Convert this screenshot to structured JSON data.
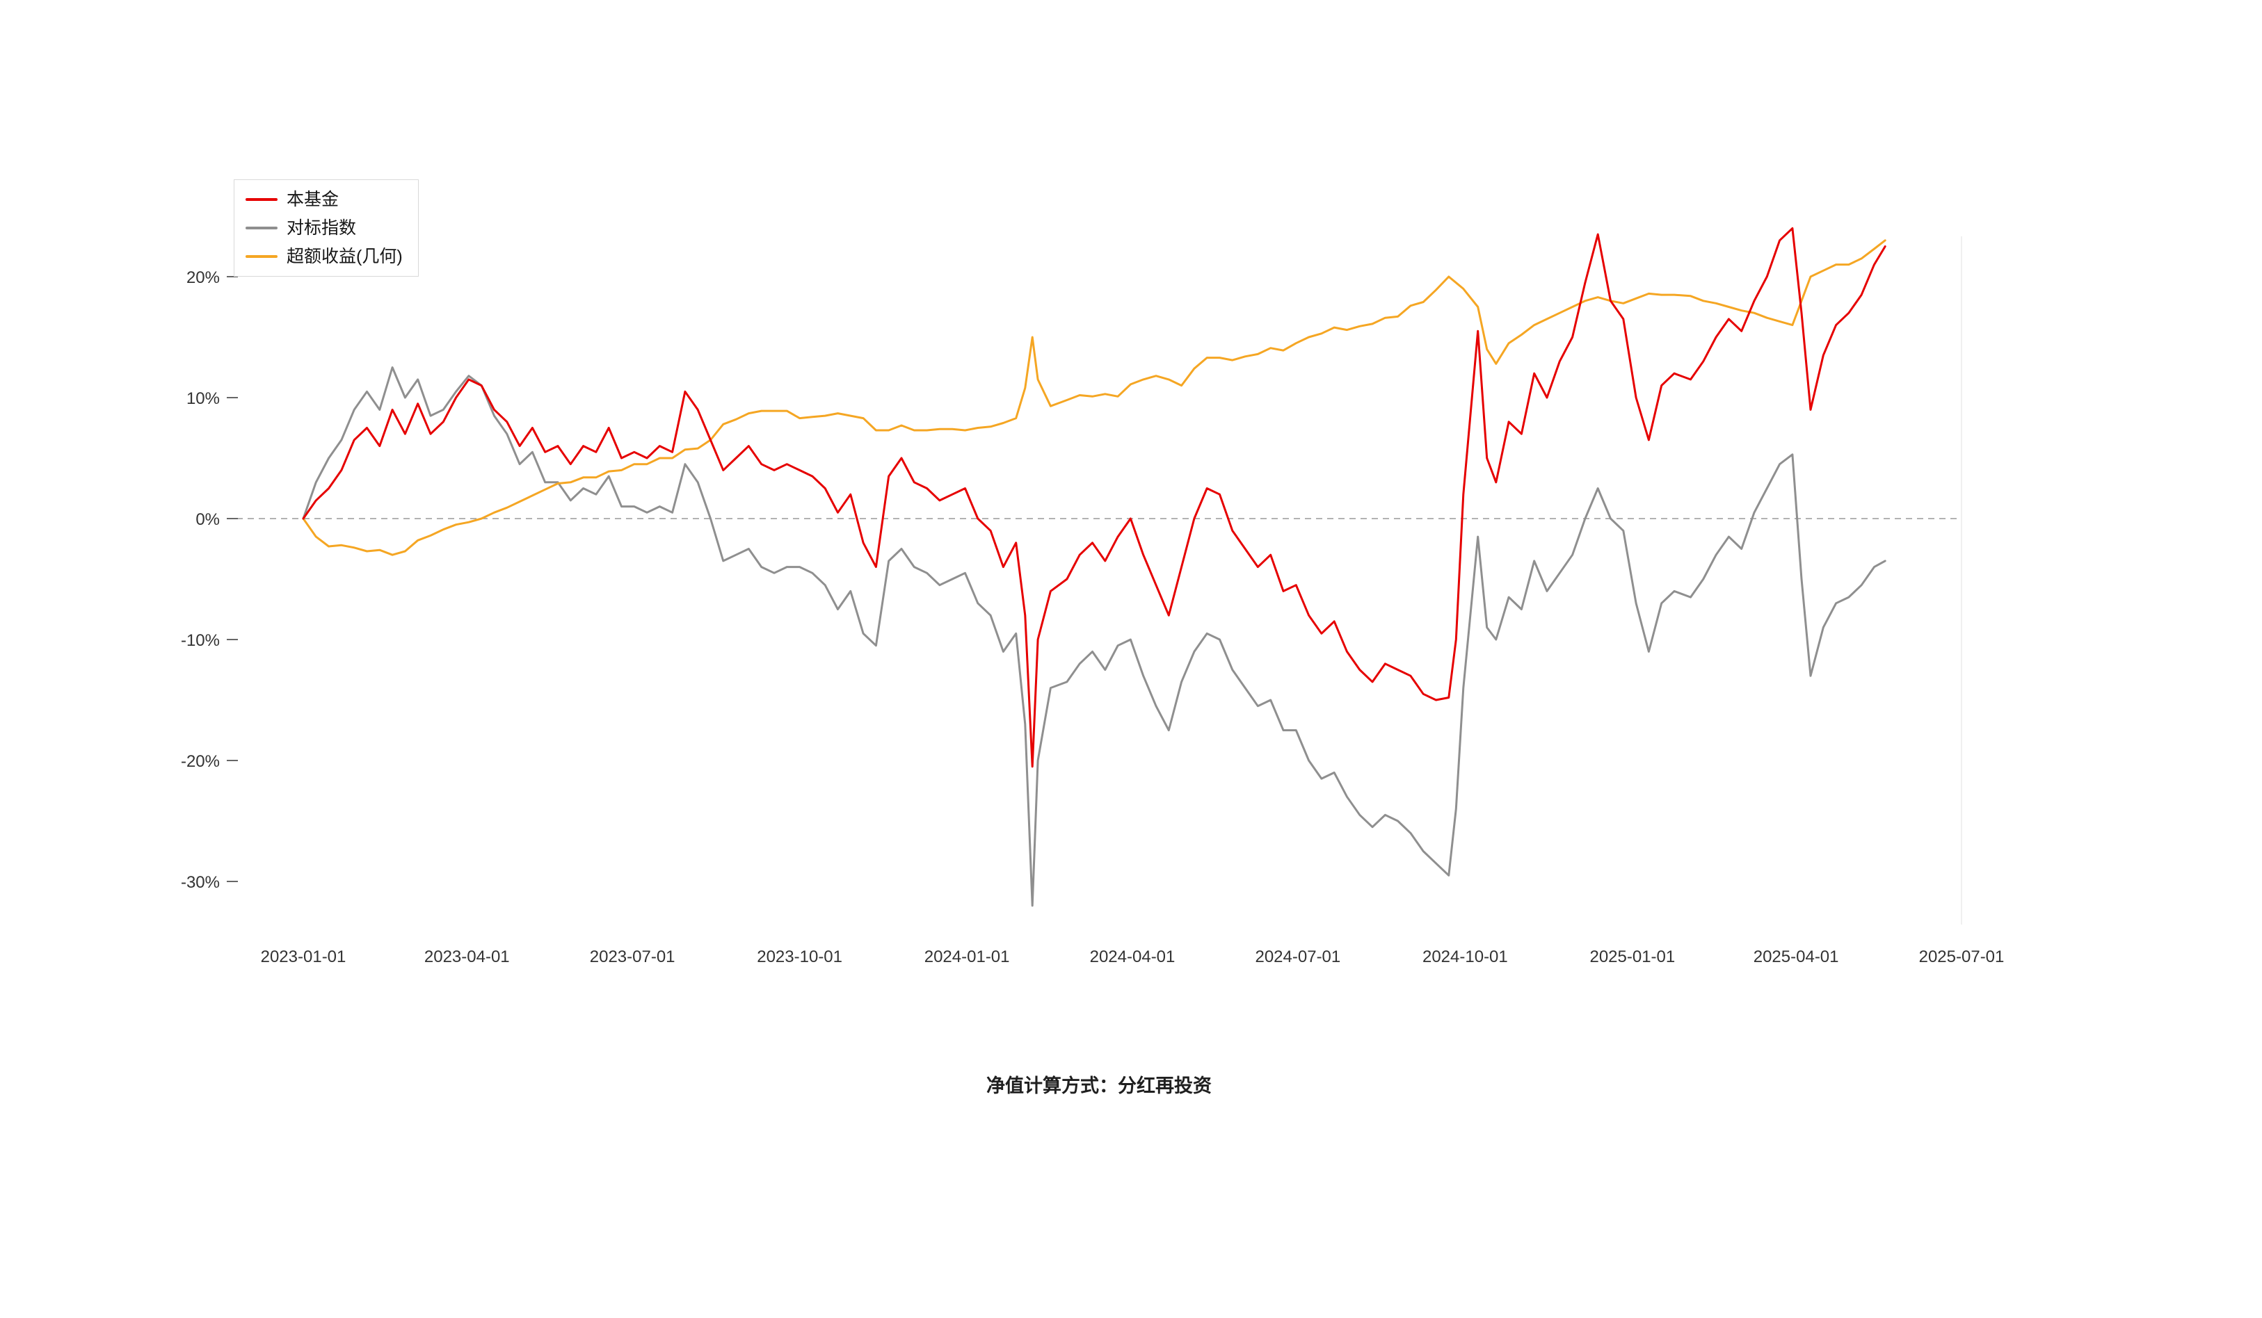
{
  "caption": {
    "text": "净值计算方式：分红再投资"
  },
  "colors": {
    "fund": "#e60000",
    "benchmark": "#8f8f8f",
    "excess": "#f5a623",
    "zero_line": "#999999",
    "axis_text": "#333333",
    "background": "#ffffff"
  },
  "chart_data": {
    "type": "line",
    "title": "",
    "xlabel": "",
    "ylabel": "",
    "legend_position": "top-left",
    "grid": false,
    "zero_line_dashed": true,
    "ylim": [
      -33,
      26
    ],
    "x_range": [
      "2023-01-01",
      "2025-07-01"
    ],
    "y_ticks": [
      {
        "label": "20%",
        "value": 20
      },
      {
        "label": "10%",
        "value": 10
      },
      {
        "label": "0%",
        "value": 0
      },
      {
        "label": "-10%",
        "value": -10
      },
      {
        "label": "-20%",
        "value": -20
      },
      {
        "label": "-30%",
        "value": -30
      }
    ],
    "x_ticks": [
      "2023-01-01",
      "2023-04-01",
      "2023-07-01",
      "2023-10-01",
      "2024-01-01",
      "2024-04-01",
      "2024-07-01",
      "2024-10-01",
      "2025-01-01",
      "2025-04-01",
      "2025-07-01"
    ],
    "x": [
      "2023-01-01",
      "2023-01-08",
      "2023-01-15",
      "2023-01-22",
      "2023-01-29",
      "2023-02-05",
      "2023-02-12",
      "2023-02-19",
      "2023-02-26",
      "2023-03-05",
      "2023-03-12",
      "2023-03-19",
      "2023-03-26",
      "2023-04-02",
      "2023-04-09",
      "2023-04-16",
      "2023-04-23",
      "2023-04-30",
      "2023-05-07",
      "2023-05-14",
      "2023-05-21",
      "2023-05-28",
      "2023-06-04",
      "2023-06-11",
      "2023-06-18",
      "2023-06-25",
      "2023-07-02",
      "2023-07-09",
      "2023-07-16",
      "2023-07-23",
      "2023-07-30",
      "2023-08-06",
      "2023-08-13",
      "2023-08-20",
      "2023-08-27",
      "2023-09-03",
      "2023-09-10",
      "2023-09-17",
      "2023-09-24",
      "2023-10-01",
      "2023-10-08",
      "2023-10-15",
      "2023-10-22",
      "2023-10-29",
      "2023-11-05",
      "2023-11-12",
      "2023-11-19",
      "2023-11-26",
      "2023-12-03",
      "2023-12-10",
      "2023-12-17",
      "2023-12-24",
      "2023-12-31",
      "2024-01-07",
      "2024-01-14",
      "2024-01-21",
      "2024-01-28",
      "2024-02-02",
      "2024-02-06",
      "2024-02-09",
      "2024-02-16",
      "2024-02-25",
      "2024-03-03",
      "2024-03-10",
      "2024-03-17",
      "2024-03-24",
      "2024-03-31",
      "2024-04-07",
      "2024-04-14",
      "2024-04-21",
      "2024-04-28",
      "2024-05-05",
      "2024-05-12",
      "2024-05-19",
      "2024-05-26",
      "2024-06-02",
      "2024-06-09",
      "2024-06-16",
      "2024-06-23",
      "2024-06-30",
      "2024-07-07",
      "2024-07-14",
      "2024-07-21",
      "2024-07-28",
      "2024-08-04",
      "2024-08-11",
      "2024-08-18",
      "2024-08-25",
      "2024-09-01",
      "2024-09-08",
      "2024-09-15",
      "2024-09-22",
      "2024-09-26",
      "2024-09-30",
      "2024-10-08",
      "2024-10-13",
      "2024-10-18",
      "2024-10-25",
      "2024-11-01",
      "2024-11-08",
      "2024-11-15",
      "2024-11-22",
      "2024-11-29",
      "2024-12-06",
      "2024-12-13",
      "2024-12-20",
      "2024-12-27",
      "2025-01-03",
      "2025-01-10",
      "2025-01-17",
      "2025-01-24",
      "2025-02-02",
      "2025-02-09",
      "2025-02-16",
      "2025-02-23",
      "2025-03-02",
      "2025-03-09",
      "2025-03-16",
      "2025-03-23",
      "2025-03-30",
      "2025-04-04",
      "2025-04-09",
      "2025-04-16",
      "2025-04-23",
      "2025-04-30",
      "2025-05-07",
      "2025-05-14",
      "2025-05-20"
    ],
    "series": [
      {
        "id": "fund",
        "name": "本基金",
        "color": "#e60000",
        "values": [
          0,
          1.5,
          2.5,
          4,
          6.5,
          7.5,
          6,
          9,
          7,
          9.5,
          7,
          8,
          10,
          11.5,
          11,
          9,
          8,
          6,
          7.5,
          5.5,
          6,
          4.5,
          6,
          5.5,
          7.5,
          5,
          5.5,
          5,
          6,
          5.5,
          10.5,
          9,
          6.5,
          4,
          5,
          6,
          4.5,
          4,
          4.5,
          4,
          3.5,
          2.5,
          0.5,
          2,
          -2,
          -4,
          3.5,
          5,
          3,
          2.5,
          1.5,
          2,
          2.5,
          0,
          -1,
          -4,
          -2,
          -8,
          -20.5,
          -10,
          -6,
          -5,
          -3,
          -2,
          -3.5,
          -1.5,
          0,
          -3,
          -5.5,
          -8,
          -4,
          0,
          2.5,
          2,
          -1,
          -2.5,
          -4,
          -3,
          -6,
          -5.5,
          -8,
          -9.5,
          -8.5,
          -11,
          -12.5,
          -13.5,
          -12,
          -12.5,
          -13,
          -14.5,
          -15,
          -14.8,
          -10,
          2,
          15.5,
          5,
          3,
          8,
          7,
          12,
          10,
          13,
          15,
          19.5,
          23.5,
          18,
          16.5,
          10,
          6.5,
          11,
          12,
          11.5,
          13,
          15,
          16.5,
          15.5,
          18,
          20,
          23,
          24,
          17,
          9,
          13.5,
          16,
          17,
          18.5,
          21,
          22.5
        ]
      },
      {
        "id": "benchmark",
        "name": "对标指数",
        "color": "#8f8f8f",
        "values": [
          0,
          3,
          5,
          6.5,
          9,
          10.5,
          9,
          12.5,
          10,
          11.5,
          8.5,
          9,
          10.5,
          11.8,
          11,
          8.5,
          7,
          4.5,
          5.5,
          3,
          3,
          1.5,
          2.5,
          2,
          3.5,
          1,
          1,
          0.5,
          1,
          0.5,
          4.5,
          3,
          0,
          -3.5,
          -3,
          -2.5,
          -4,
          -4.5,
          -4,
          -4,
          -4.5,
          -5.5,
          -7.5,
          -6,
          -9.5,
          -10.5,
          -3.5,
          -2.5,
          -4,
          -4.5,
          -5.5,
          -5,
          -4.5,
          -7,
          -8,
          -11,
          -9.5,
          -17,
          -32,
          -20,
          -14,
          -13.5,
          -12,
          -11,
          -12.5,
          -10.5,
          -10,
          -13,
          -15.5,
          -17.5,
          -13.5,
          -11,
          -9.5,
          -10,
          -12.5,
          -14,
          -15.5,
          -15,
          -17.5,
          -17.5,
          -20,
          -21.5,
          -21,
          -23,
          -24.5,
          -25.5,
          -24.5,
          -25,
          -26,
          -27.5,
          -28.5,
          -29.5,
          -24,
          -14,
          -1.5,
          -9,
          -10,
          -6.5,
          -7.5,
          -3.5,
          -6,
          -4.5,
          -3,
          0,
          2.5,
          0,
          -1,
          -7,
          -11,
          -7,
          -6,
          -6.5,
          -5,
          -3,
          -1.5,
          -2.5,
          0.5,
          2.5,
          4.5,
          5.3,
          -5,
          -13,
          -9,
          -7,
          -6.5,
          -5.5,
          -4,
          -3.5
        ]
      },
      {
        "id": "excess",
        "name": "超额收益(几何)",
        "color": "#f5a623",
        "values": [
          0,
          -1.5,
          -2.3,
          -2.2,
          -2.4,
          -2.7,
          -2.6,
          -3,
          -2.7,
          -1.8,
          -1.4,
          -0.9,
          -0.5,
          -0.3,
          0,
          0.5,
          0.9,
          1.4,
          1.9,
          2.4,
          2.9,
          3,
          3.4,
          3.4,
          3.9,
          4,
          4.5,
          4.5,
          5,
          5,
          5.7,
          5.8,
          6.5,
          7.8,
          8.2,
          8.7,
          8.9,
          8.9,
          8.9,
          8.3,
          8.4,
          8.5,
          8.7,
          8.5,
          8.3,
          7.3,
          7.3,
          7.7,
          7.3,
          7.3,
          7.4,
          7.4,
          7.3,
          7.5,
          7.6,
          7.9,
          8.3,
          10.8,
          15,
          11.5,
          9.3,
          9.8,
          10.2,
          10.1,
          10.3,
          10.1,
          11.1,
          11.5,
          11.8,
          11.5,
          11,
          12.4,
          13.3,
          13.3,
          13.1,
          13.4,
          13.6,
          14.1,
          13.9,
          14.5,
          15,
          15.3,
          15.8,
          15.6,
          15.9,
          16.1,
          16.6,
          16.7,
          17.6,
          17.9,
          18.9,
          20,
          19.5,
          19,
          17.5,
          14,
          12.8,
          14.5,
          15.2,
          16,
          16.5,
          17,
          17.5,
          18,
          18.3,
          18,
          17.8,
          18.2,
          18.6,
          18.5,
          18.5,
          18.4,
          18,
          17.8,
          17.5,
          17.2,
          17,
          16.6,
          16.3,
          16,
          18,
          20,
          20.5,
          21,
          21,
          21.5,
          22.3,
          23
        ]
      }
    ]
  }
}
